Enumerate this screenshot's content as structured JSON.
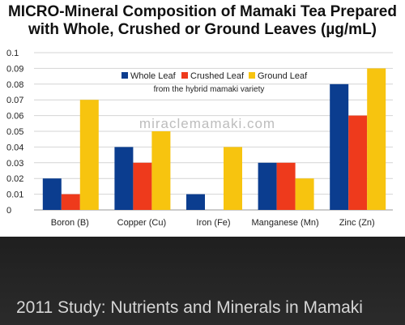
{
  "chart_data": {
    "type": "bar",
    "title_line1": "MICRO-Mineral Composition of Mamaki Tea Prepared",
    "title_line2": "with Whole, Crushed or Ground Leaves (µg/mL)",
    "categories": [
      "Boron (B)",
      "Copper (Cu)",
      "Iron (Fe)",
      "Manganese (Mn)",
      "Zinc (Zn)"
    ],
    "series": [
      {
        "name": "Whole Leaf",
        "color": "#0b3d8f",
        "values": [
          0.02,
          0.04,
          0.01,
          0.03,
          0.08
        ]
      },
      {
        "name": "Crushed Leaf",
        "color": "#ee3a1c",
        "values": [
          0.01,
          0.03,
          0.0,
          0.03,
          0.06
        ]
      },
      {
        "name": "Ground Leaf",
        "color": "#f7c40f",
        "values": [
          0.07,
          0.05,
          0.04,
          0.02,
          0.09
        ]
      }
    ],
    "ylim": [
      0,
      0.1
    ],
    "yticks": [
      "0",
      "0.01",
      "0.02",
      "0.03",
      "0.04",
      "0.05",
      "0.06",
      "0.07",
      "0.08",
      "0.09",
      "0.1"
    ],
    "legend_placement": "top-center",
    "legend_note": "from the hybrid mamaki variety",
    "watermark": "miraclemamaki.com",
    "grid": true
  },
  "caption": "2011 Study: Nutrients and Minerals in Mamaki"
}
